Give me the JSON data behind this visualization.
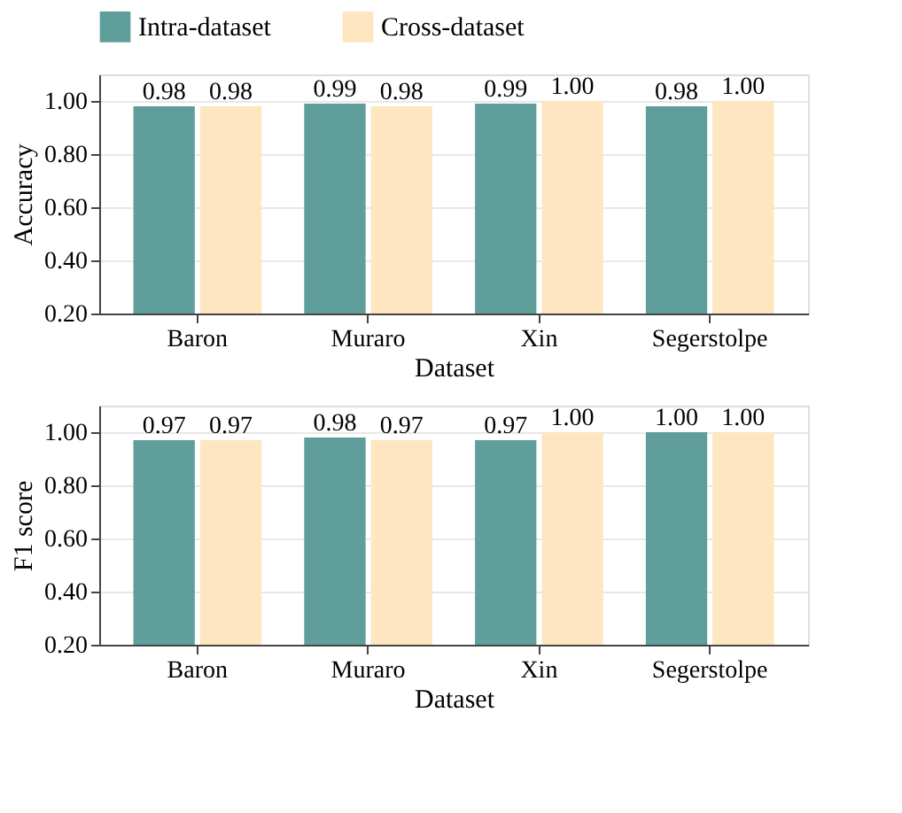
{
  "chart_data": [
    {
      "type": "bar",
      "ylabel": "Accuracy",
      "xlabel": "Dataset",
      "categories": [
        "Baron",
        "Muraro",
        "Xin",
        "Segerstolpe"
      ],
      "series": [
        {
          "name": "Intra-dataset",
          "color": "#5f9e9a",
          "values": [
            0.98,
            0.99,
            0.99,
            0.98
          ],
          "value_labels": [
            "0.98",
            "0.99",
            "0.99",
            "0.98"
          ]
        },
        {
          "name": "Cross-dataset",
          "color": "#fde6c0",
          "values": [
            0.98,
            0.98,
            1.0,
            1.0
          ],
          "value_labels": [
            "0.98",
            "0.98",
            "1.00",
            "1.00"
          ]
        }
      ],
      "ylim": [
        0.2,
        1.1
      ],
      "yticks": [
        {
          "value": 0.2,
          "label": "0.20"
        },
        {
          "value": 0.4,
          "label": "0.40"
        },
        {
          "value": 0.6,
          "label": "0.60"
        },
        {
          "value": 0.8,
          "label": "0.80"
        },
        {
          "value": 1.0,
          "label": "1.00"
        }
      ],
      "grid": "y",
      "legend": "top"
    },
    {
      "type": "bar",
      "ylabel": "F1 score",
      "xlabel": "Dataset",
      "categories": [
        "Baron",
        "Muraro",
        "Xin",
        "Segerstolpe"
      ],
      "series": [
        {
          "color": "#5f9e9a",
          "values": [
            0.97,
            0.98,
            0.97,
            1.0
          ],
          "value_labels": [
            "0.97",
            "0.98",
            "0.97",
            "1.00"
          ]
        },
        {
          "color": "#fde6c0",
          "values": [
            0.97,
            0.97,
            1.0,
            1.0
          ],
          "value_labels": [
            "0.97",
            "0.97",
            "1.00",
            "1.00"
          ]
        }
      ],
      "ylim": [
        0.2,
        1.1
      ],
      "yticks": [
        {
          "value": 0.2,
          "label": "0.20"
        },
        {
          "value": 0.4,
          "label": "0.40"
        },
        {
          "value": 0.6,
          "label": "0.60"
        },
        {
          "value": 0.8,
          "label": "0.80"
        },
        {
          "value": 1.0,
          "label": "1.00"
        }
      ],
      "grid": "y",
      "legend": false
    }
  ]
}
